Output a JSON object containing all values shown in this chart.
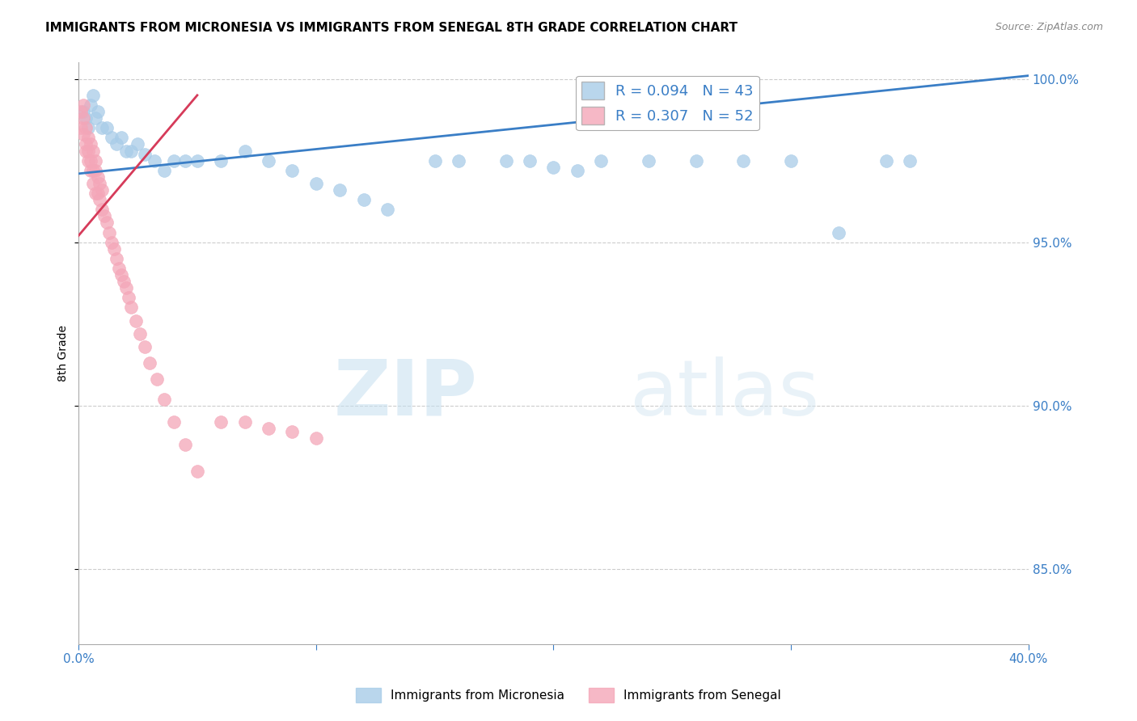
{
  "title": "IMMIGRANTS FROM MICRONESIA VS IMMIGRANTS FROM SENEGAL 8TH GRADE CORRELATION CHART",
  "source": "Source: ZipAtlas.com",
  "ylabel": "8th Grade",
  "x_min": 0.0,
  "x_max": 0.4,
  "y_min": 0.827,
  "y_max": 1.005,
  "y_ticks": [
    0.85,
    0.9,
    0.95,
    1.0
  ],
  "y_tick_labels": [
    "85.0%",
    "90.0%",
    "95.0%",
    "100.0%"
  ],
  "micronesia_color": "#a8cce8",
  "senegal_color": "#f4a6b8",
  "micronesia_line_color": "#3a7ec6",
  "senegal_line_color": "#d63b5a",
  "R_micronesia": 0.094,
  "N_micronesia": 43,
  "R_senegal": 0.307,
  "N_senegal": 52,
  "legend_label_micronesia": "Immigrants from Micronesia",
  "legend_label_senegal": "Immigrants from Senegal",
  "mic_line_x0": 0.0,
  "mic_line_y0": 0.971,
  "mic_line_x1": 0.4,
  "mic_line_y1": 1.001,
  "sen_line_x0": 0.0,
  "sen_line_y0": 0.952,
  "sen_line_x1": 0.05,
  "sen_line_y1": 0.995,
  "micronesia_x": [
    0.002,
    0.003,
    0.004,
    0.005,
    0.006,
    0.007,
    0.008,
    0.01,
    0.012,
    0.014,
    0.016,
    0.018,
    0.02,
    0.022,
    0.025,
    0.028,
    0.032,
    0.036,
    0.04,
    0.045,
    0.05,
    0.06,
    0.07,
    0.08,
    0.09,
    0.1,
    0.11,
    0.12,
    0.13,
    0.15,
    0.16,
    0.18,
    0.19,
    0.2,
    0.21,
    0.22,
    0.24,
    0.26,
    0.28,
    0.3,
    0.32,
    0.34,
    0.35
  ],
  "micronesia_y": [
    0.99,
    0.988,
    0.985,
    0.992,
    0.995,
    0.988,
    0.99,
    0.985,
    0.985,
    0.982,
    0.98,
    0.982,
    0.978,
    0.978,
    0.98,
    0.977,
    0.975,
    0.972,
    0.975,
    0.975,
    0.975,
    0.975,
    0.978,
    0.975,
    0.972,
    0.968,
    0.966,
    0.963,
    0.96,
    0.975,
    0.975,
    0.975,
    0.975,
    0.973,
    0.972,
    0.975,
    0.975,
    0.975,
    0.975,
    0.975,
    0.953,
    0.975,
    0.975
  ],
  "senegal_x": [
    0.001,
    0.001,
    0.002,
    0.002,
    0.002,
    0.003,
    0.003,
    0.003,
    0.004,
    0.004,
    0.004,
    0.005,
    0.005,
    0.005,
    0.006,
    0.006,
    0.006,
    0.007,
    0.007,
    0.007,
    0.008,
    0.008,
    0.009,
    0.009,
    0.01,
    0.01,
    0.011,
    0.012,
    0.013,
    0.014,
    0.015,
    0.016,
    0.017,
    0.018,
    0.019,
    0.02,
    0.021,
    0.022,
    0.024,
    0.026,
    0.028,
    0.03,
    0.033,
    0.036,
    0.04,
    0.045,
    0.05,
    0.06,
    0.07,
    0.08,
    0.09,
    0.1
  ],
  "senegal_y": [
    0.99,
    0.985,
    0.992,
    0.988,
    0.983,
    0.985,
    0.98,
    0.978,
    0.982,
    0.978,
    0.975,
    0.98,
    0.975,
    0.972,
    0.978,
    0.972,
    0.968,
    0.975,
    0.972,
    0.965,
    0.97,
    0.965,
    0.968,
    0.963,
    0.966,
    0.96,
    0.958,
    0.956,
    0.953,
    0.95,
    0.948,
    0.945,
    0.942,
    0.94,
    0.938,
    0.936,
    0.933,
    0.93,
    0.926,
    0.922,
    0.918,
    0.913,
    0.908,
    0.902,
    0.895,
    0.888,
    0.88,
    0.895,
    0.895,
    0.893,
    0.892,
    0.89
  ],
  "watermark_zip": "ZIP",
  "watermark_atlas": "atlas",
  "background_color": "#ffffff",
  "grid_color": "#cccccc"
}
